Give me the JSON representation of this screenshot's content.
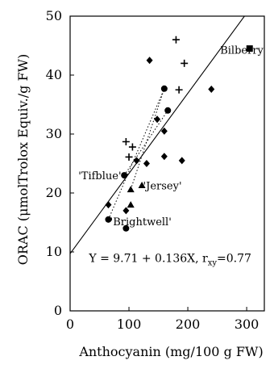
{
  "chart_data": {
    "type": "scatter",
    "title": "",
    "xlabel": "Anthocyanin (mg/100 g FW)",
    "ylabel": "ORAC (μmolTrolox Equiv./g FW)",
    "xlim": [
      0,
      330
    ],
    "ylim": [
      0,
      50
    ],
    "xticks": [
      0,
      100,
      200,
      300
    ],
    "yticks": [
      0,
      10,
      20,
      30,
      40,
      50
    ],
    "grid": false,
    "legend": "none",
    "series": [
      {
        "marker": "plus",
        "points": [
          [
            95,
            28.7
          ],
          [
            100,
            26.1
          ],
          [
            106,
            27.8
          ],
          [
            180,
            46
          ],
          [
            185,
            37.5
          ],
          [
            194,
            42
          ]
        ]
      },
      {
        "marker": "diamond",
        "points": [
          [
            65,
            18
          ],
          [
            95,
            17
          ],
          [
            113,
            25.5
          ],
          [
            130,
            25
          ],
          [
            135,
            42.5
          ],
          [
            148,
            32.5
          ],
          [
            160,
            30.5
          ],
          [
            160,
            26.2
          ],
          [
            190,
            25.5
          ],
          [
            240,
            37.6
          ]
        ]
      },
      {
        "marker": "circle",
        "points": [
          [
            65,
            15.5
          ],
          [
            92,
            23
          ],
          [
            95,
            14
          ],
          [
            160,
            37.7
          ],
          [
            166,
            34
          ]
        ]
      },
      {
        "marker": "triangle",
        "points": [
          [
            103,
            20.6
          ],
          [
            103,
            18
          ],
          [
            122,
            21.3
          ]
        ]
      },
      {
        "marker": "square",
        "points": [
          [
            305,
            44.5
          ]
        ]
      }
    ],
    "regression": {
      "intercept": 9.71,
      "slope": 0.136,
      "x_from": 0,
      "x_to": 310
    },
    "dotted_links": [
      [
        [
          65,
          15.5
        ],
        [
          160,
          37.7
        ]
      ],
      [
        [
          92,
          23
        ],
        [
          166,
          34
        ]
      ],
      [
        [
          103,
          20.6
        ],
        [
          160,
          37.7
        ]
      ]
    ],
    "annotations": [
      {
        "text": "Bilberry",
        "x": 255,
        "y": 44.3
      },
      {
        "text": "'Tifblue'",
        "x": 14,
        "y": 23
      },
      {
        "text": "'Jersey'",
        "x": 124,
        "y": 21.3
      },
      {
        "text": "'Brightwell'",
        "x": 68,
        "y": 15.2
      }
    ],
    "equation": {
      "text": "Y = 9.71 + 0.136X, r",
      "subscript": "xy",
      "suffix": "=0.77",
      "x": 170,
      "y": 9
    }
  }
}
